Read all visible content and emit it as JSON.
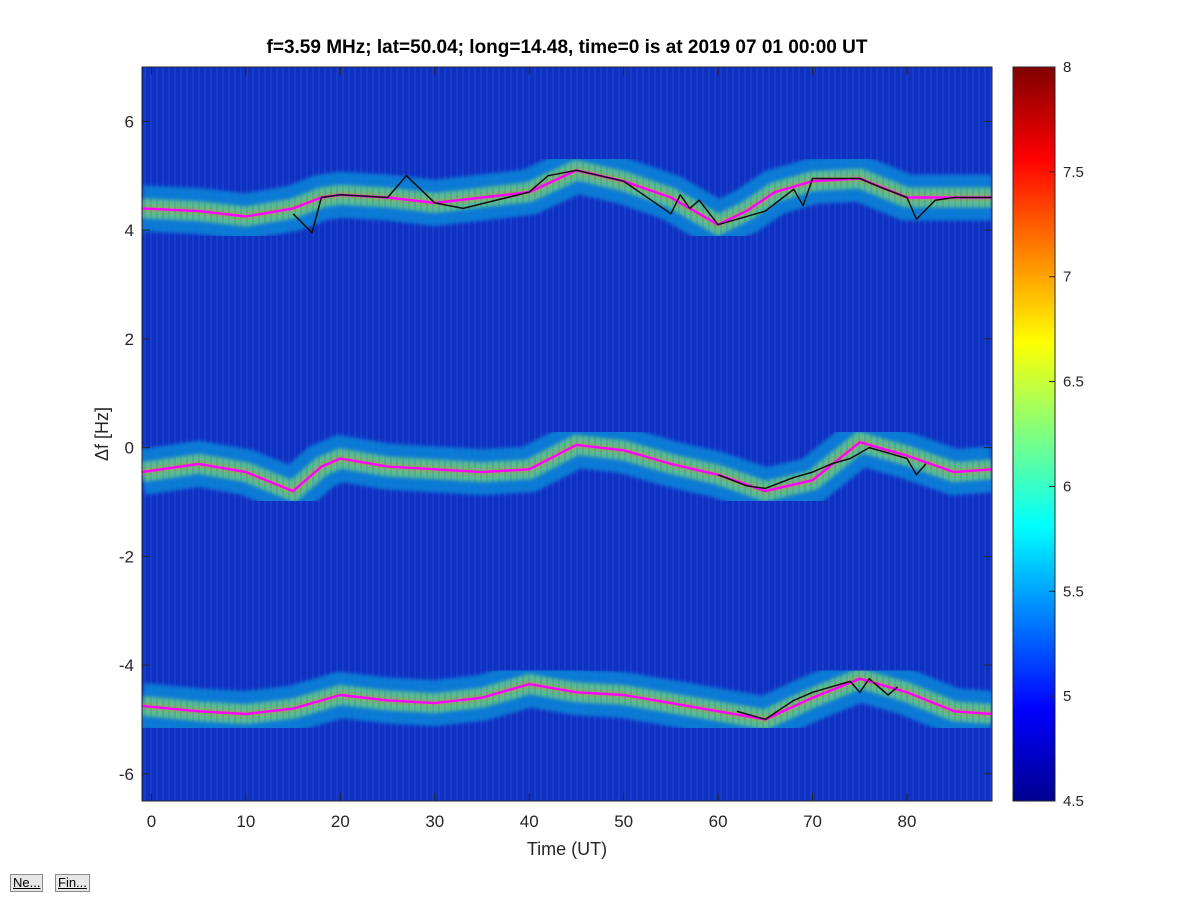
{
  "chart_data": {
    "type": "heatmap",
    "title": "f=3.59 MHz;  lat=50.04; long=14.48, time=0 is at 2019 07 01 00:00 UT",
    "xlabel": "Time (UT)",
    "ylabel": "Δf [Hz]",
    "xlim": [
      -1,
      89
    ],
    "ylim": [
      -6.5,
      7
    ],
    "xticks": [
      0,
      10,
      20,
      30,
      40,
      50,
      60,
      70,
      80
    ],
    "yticks": [
      -6,
      -4,
      -2,
      0,
      2,
      4,
      6
    ],
    "colorbar": {
      "min": 4.5,
      "max": 8,
      "ticks": [
        "4.5",
        "5",
        "5.5",
        "6",
        "6.5",
        "7",
        "7.5",
        "8"
      ],
      "colormap": "jet"
    },
    "grid": false,
    "traces": [
      {
        "color": "#ff00ff",
        "x": [
          -1,
          5,
          10,
          15,
          18,
          20,
          25,
          30,
          35,
          40,
          45,
          50,
          55,
          60,
          63,
          66,
          70,
          75,
          80,
          85,
          89
        ],
        "y": [
          4.4,
          4.35,
          4.25,
          4.4,
          4.6,
          4.65,
          4.6,
          4.5,
          4.6,
          4.7,
          5.1,
          4.9,
          4.6,
          4.1,
          4.35,
          4.7,
          4.9,
          4.95,
          4.6,
          4.6,
          4.6
        ]
      },
      {
        "color": "#ff00ff",
        "x": [
          -1,
          5,
          10,
          15,
          18,
          20,
          25,
          30,
          35,
          40,
          45,
          50,
          55,
          60,
          65,
          70,
          75,
          80,
          85,
          89
        ],
        "y": [
          -0.45,
          -0.3,
          -0.45,
          -0.8,
          -0.35,
          -0.2,
          -0.35,
          -0.4,
          -0.45,
          -0.4,
          0.05,
          -0.05,
          -0.3,
          -0.5,
          -0.8,
          -0.6,
          0.1,
          -0.15,
          -0.45,
          -0.4
        ]
      },
      {
        "color": "#ff00ff",
        "x": [
          -1,
          5,
          10,
          15,
          20,
          25,
          30,
          35,
          40,
          45,
          50,
          55,
          60,
          65,
          70,
          75,
          80,
          85,
          89
        ],
        "y": [
          -4.75,
          -4.85,
          -4.9,
          -4.8,
          -4.55,
          -4.65,
          -4.7,
          -4.6,
          -4.35,
          -4.5,
          -4.55,
          -4.7,
          -4.85,
          -5.0,
          -4.6,
          -4.25,
          -4.5,
          -4.85,
          -4.9
        ]
      },
      {
        "color": "#111111",
        "x": [
          15,
          17,
          18,
          20,
          25,
          27,
          30,
          33,
          40,
          42,
          45,
          50,
          55,
          56,
          57,
          58,
          60,
          65,
          68,
          69,
          70,
          72,
          75,
          77,
          80,
          81,
          83,
          85,
          89
        ],
        "y": [
          4.3,
          3.95,
          4.6,
          4.65,
          4.6,
          5.0,
          4.5,
          4.4,
          4.7,
          5.0,
          5.1,
          4.9,
          4.3,
          4.65,
          4.4,
          4.55,
          4.1,
          4.35,
          4.75,
          4.45,
          4.95,
          4.95,
          4.95,
          4.8,
          4.6,
          4.2,
          4.55,
          4.6,
          4.6
        ]
      },
      {
        "color": "#111111",
        "x": [
          60,
          63,
          65,
          68,
          70,
          72,
          74,
          76,
          78,
          80,
          81,
          82
        ],
        "y": [
          -0.5,
          -0.7,
          -0.75,
          -0.55,
          -0.45,
          -0.3,
          -0.2,
          0.0,
          -0.1,
          -0.2,
          -0.5,
          -0.3
        ]
      },
      {
        "color": "#111111",
        "x": [
          62,
          65,
          68,
          70,
          72,
          74,
          75,
          76,
          78,
          79
        ],
        "y": [
          -4.85,
          -5.0,
          -4.65,
          -4.5,
          -4.4,
          -4.3,
          -4.5,
          -4.25,
          -4.55,
          -4.4
        ]
      }
    ]
  },
  "buttons": [
    {
      "label": "Ne..."
    },
    {
      "label": "Fin..."
    }
  ]
}
